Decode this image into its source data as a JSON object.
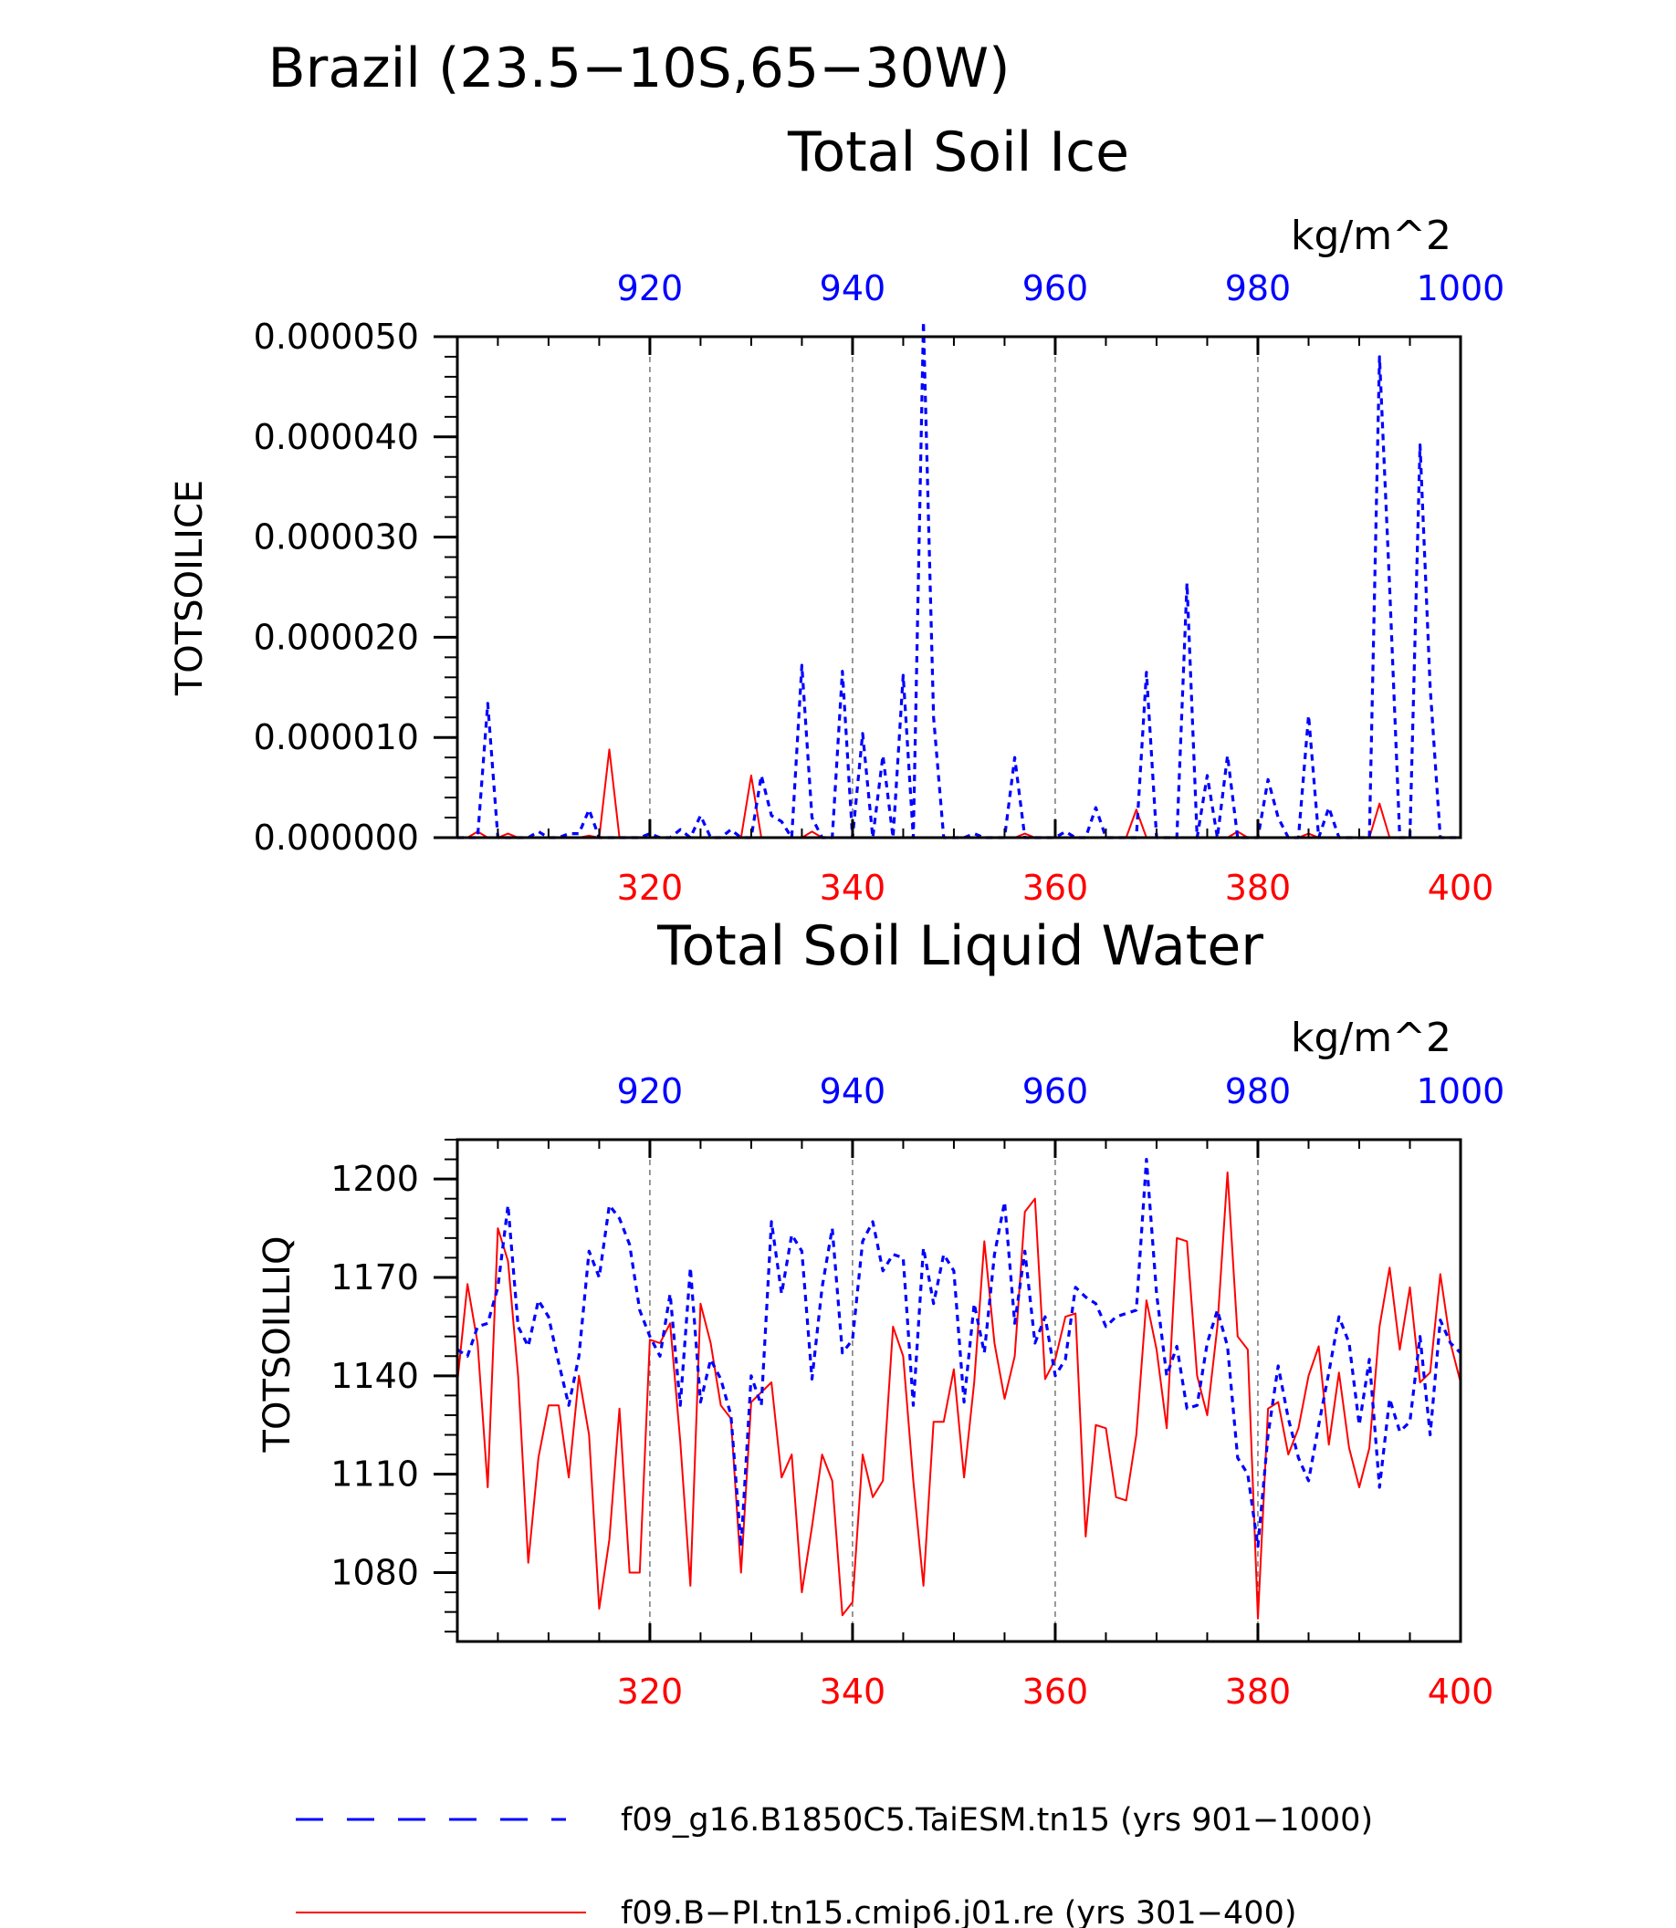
{
  "page": {
    "title_line1": "Brazil (23.5−10S,65−30W)"
  },
  "colors": {
    "series_blue": "#0000ff",
    "series_red": "#ff0000",
    "axes": "#000000"
  },
  "legend": {
    "entries": [
      {
        "label": "f09_g16.B1850C5.TaiESM.tn15 (yrs 901−1000)",
        "color": "#0000ff",
        "style": "dashed"
      },
      {
        "label": "f09.B−PI.tn15.cmip6.j01.re (yrs 301−400)",
        "color": "#ff0000",
        "style": "solid"
      }
    ]
  },
  "chart_data": [
    {
      "type": "line",
      "title": "Total Soil Ice",
      "ylabel": "TOTSOILICE",
      "units": "kg/m^2",
      "ylim": [
        0,
        5e-05
      ],
      "yticks": [
        "0.000000",
        "0.000010",
        "0.000020",
        "0.000030",
        "0.000040",
        "0.000050"
      ],
      "xlim_bottom": [
        301,
        400
      ],
      "xticks_bottom": [
        "320",
        "340",
        "360",
        "380",
        "400"
      ],
      "xlim_top": [
        901,
        1000
      ],
      "xticks_top": [
        "920",
        "940",
        "960",
        "980",
        "1000"
      ],
      "grid": "vertical dashed at major x ticks",
      "series": [
        {
          "color": "#ff0000",
          "style": "solid",
          "x_axis": "bottom",
          "x": [
            301,
            302,
            303,
            304,
            305,
            306,
            307,
            308,
            309,
            310,
            311,
            312,
            313,
            314,
            315,
            316,
            317,
            318,
            319,
            320,
            321,
            322,
            323,
            324,
            325,
            326,
            327,
            328,
            329,
            330,
            331,
            332,
            333,
            334,
            335,
            336,
            337,
            338,
            339,
            340,
            341,
            342,
            343,
            344,
            345,
            346,
            347,
            348,
            349,
            350,
            351,
            352,
            353,
            354,
            355,
            356,
            357,
            358,
            359,
            360,
            361,
            362,
            363,
            364,
            365,
            366,
            367,
            368,
            369,
            370,
            371,
            372,
            373,
            374,
            375,
            376,
            377,
            378,
            379,
            380,
            381,
            382,
            383,
            384,
            385,
            386,
            387,
            388,
            389,
            390,
            391,
            392,
            393,
            394,
            395,
            396,
            397,
            398,
            399,
            400
          ],
          "values": [
            0,
            0,
            6e-07,
            0,
            0,
            4e-07,
            0,
            0,
            0,
            0,
            0,
            0,
            0,
            2e-07,
            0,
            8.8e-06,
            0,
            0,
            0,
            0,
            0,
            0,
            0,
            0,
            0,
            0,
            0,
            0,
            0,
            6.2e-06,
            0,
            0,
            0,
            0,
            0,
            6e-07,
            0,
            0,
            0,
            0,
            0,
            0,
            0,
            0,
            0,
            0,
            0,
            0,
            0,
            0,
            0,
            0,
            0,
            0,
            0,
            0,
            4e-07,
            0,
            0,
            0,
            0,
            0,
            0,
            0,
            0,
            0,
            0,
            2.8e-06,
            0,
            0,
            0,
            0,
            0,
            0,
            0,
            0,
            0,
            6e-07,
            0,
            0,
            0,
            0,
            0,
            0,
            4e-07,
            0,
            0,
            0,
            0,
            0,
            0,
            3.4e-06,
            0,
            0,
            0,
            0,
            0,
            0,
            0,
            0
          ]
        },
        {
          "color": "#0000ff",
          "style": "dashed",
          "x_axis": "top",
          "x": [
            901,
            902,
            903,
            904,
            905,
            906,
            907,
            908,
            909,
            910,
            911,
            912,
            913,
            914,
            915,
            916,
            917,
            918,
            919,
            920,
            921,
            922,
            923,
            924,
            925,
            926,
            927,
            928,
            929,
            930,
            931,
            932,
            933,
            934,
            935,
            936,
            937,
            938,
            939,
            940,
            941,
            942,
            943,
            944,
            945,
            946,
            947,
            948,
            949,
            950,
            951,
            952,
            953,
            954,
            955,
            956,
            957,
            958,
            959,
            960,
            961,
            962,
            963,
            964,
            965,
            966,
            967,
            968,
            969,
            970,
            971,
            972,
            973,
            974,
            975,
            976,
            977,
            978,
            979,
            980,
            981,
            982,
            983,
            984,
            985,
            986,
            987,
            988,
            989,
            990,
            991,
            992,
            993,
            994,
            995,
            996,
            997,
            998,
            999,
            1000
          ],
          "values": [
            0,
            0,
            0,
            1.34e-05,
            0,
            0,
            0,
            0,
            6e-07,
            0,
            0,
            4e-07,
            4e-07,
            2.8e-06,
            0,
            0,
            0,
            0,
            0,
            4e-07,
            0,
            0,
            8e-07,
            0,
            2.2e-06,
            0,
            0,
            8e-07,
            0,
            0,
            6.2e-06,
            2.2e-06,
            1.6e-06,
            0,
            1.72e-05,
            2e-06,
            0,
            0,
            1.66e-05,
            0,
            1.04e-05,
            0,
            8.2e-06,
            0,
            1.62e-05,
            0,
            5.15e-05,
            1.2e-05,
            0,
            0,
            0,
            4e-07,
            0,
            0,
            0,
            8e-06,
            0,
            0,
            0,
            0,
            6e-07,
            0,
            0,
            3e-06,
            0,
            0,
            0,
            0,
            1.65e-05,
            0,
            0,
            0,
            2.54e-05,
            0,
            6.2e-06,
            0,
            8.2e-06,
            0,
            0,
            0,
            5.8e-06,
            2e-06,
            0,
            0,
            1.22e-05,
            0,
            3e-06,
            0,
            0,
            0,
            0,
            4.8e-05,
            2.5e-05,
            0,
            0,
            3.92e-05,
            1.5e-05,
            0,
            0,
            0
          ]
        }
      ]
    },
    {
      "type": "line",
      "title": "Total Soil Liquid Water",
      "ylabel": "TOTSOILLIQ",
      "units": "kg/m^2",
      "ylim": [
        1059,
        1212
      ],
      "yticks": [
        "1080",
        "1110",
        "1140",
        "1170",
        "1200"
      ],
      "xlim_bottom": [
        301,
        400
      ],
      "xticks_bottom": [
        "320",
        "340",
        "360",
        "380",
        "400"
      ],
      "xlim_top": [
        901,
        1000
      ],
      "xticks_top": [
        "920",
        "940",
        "960",
        "980",
        "1000"
      ],
      "grid": "vertical dashed at major x ticks",
      "series": [
        {
          "color": "#ff0000",
          "style": "solid",
          "x_axis": "bottom",
          "x": [
            301,
            302,
            303,
            304,
            305,
            306,
            307,
            308,
            309,
            310,
            311,
            312,
            313,
            314,
            315,
            316,
            317,
            318,
            319,
            320,
            321,
            322,
            323,
            324,
            325,
            326,
            327,
            328,
            329,
            330,
            331,
            332,
            333,
            334,
            335,
            336,
            337,
            338,
            339,
            340,
            341,
            342,
            343,
            344,
            345,
            346,
            347,
            348,
            349,
            350,
            351,
            352,
            353,
            354,
            355,
            356,
            357,
            358,
            359,
            360,
            361,
            362,
            363,
            364,
            365,
            366,
            367,
            368,
            369,
            370,
            371,
            372,
            373,
            374,
            375,
            376,
            377,
            378,
            379,
            380,
            381,
            382,
            383,
            384,
            385,
            386,
            387,
            388,
            389,
            390,
            391,
            392,
            393,
            394,
            395,
            396,
            397,
            398,
            399,
            400
          ],
          "values": [
            1138,
            1168,
            1150,
            1106,
            1185,
            1175,
            1140,
            1083,
            1115,
            1131,
            1131,
            1109,
            1140,
            1122,
            1069,
            1090,
            1130,
            1080,
            1080,
            1151,
            1150,
            1156,
            1120,
            1076,
            1162,
            1150,
            1131,
            1127,
            1080,
            1132,
            1135,
            1138,
            1109,
            1116,
            1074,
            1094,
            1116,
            1108,
            1067,
            1071,
            1116,
            1103,
            1108,
            1155,
            1146,
            1108,
            1076,
            1126,
            1126,
            1142,
            1109,
            1138,
            1181,
            1150,
            1133,
            1146,
            1190,
            1194,
            1139,
            1145,
            1158,
            1159,
            1091,
            1125,
            1124,
            1103,
            1102,
            1122,
            1163,
            1148,
            1124,
            1182,
            1181,
            1140,
            1128,
            1155,
            1202,
            1152,
            1148,
            1066,
            1130,
            1132,
            1116,
            1124,
            1140,
            1149,
            1119,
            1141,
            1118,
            1106,
            1118,
            1155,
            1173,
            1148,
            1167,
            1138,
            1141,
            1171,
            1150,
            1138
          ]
        },
        {
          "color": "#0000ff",
          "style": "dashed",
          "x_axis": "top",
          "x": [
            901,
            902,
            903,
            904,
            905,
            906,
            907,
            908,
            909,
            910,
            911,
            912,
            913,
            914,
            915,
            916,
            917,
            918,
            919,
            920,
            921,
            922,
            923,
            924,
            925,
            926,
            927,
            928,
            929,
            930,
            931,
            932,
            933,
            934,
            935,
            936,
            937,
            938,
            939,
            940,
            941,
            942,
            943,
            944,
            945,
            946,
            947,
            948,
            949,
            950,
            951,
            952,
            953,
            954,
            955,
            956,
            957,
            958,
            959,
            960,
            961,
            962,
            963,
            964,
            965,
            966,
            967,
            968,
            969,
            970,
            971,
            972,
            973,
            974,
            975,
            976,
            977,
            978,
            979,
            980,
            981,
            982,
            983,
            984,
            985,
            986,
            987,
            988,
            989,
            990,
            991,
            992,
            993,
            994,
            995,
            996,
            997,
            998,
            999,
            1000
          ],
          "values": [
            1148,
            1146,
            1155,
            1156,
            1167,
            1192,
            1155,
            1149,
            1163,
            1158,
            1144,
            1131,
            1146,
            1178,
            1170,
            1192,
            1188,
            1180,
            1160,
            1152,
            1146,
            1165,
            1131,
            1173,
            1132,
            1145,
            1139,
            1128,
            1088,
            1140,
            1131,
            1187,
            1165,
            1183,
            1178,
            1139,
            1167,
            1185,
            1147,
            1151,
            1181,
            1187,
            1172,
            1177,
            1176,
            1131,
            1179,
            1162,
            1177,
            1172,
            1132,
            1162,
            1147,
            1177,
            1193,
            1156,
            1178,
            1150,
            1158,
            1140,
            1145,
            1167,
            1164,
            1162,
            1155,
            1158,
            1159,
            1160,
            1206,
            1165,
            1140,
            1149,
            1130,
            1131,
            1150,
            1160,
            1149,
            1115,
            1110,
            1088,
            1122,
            1143,
            1127,
            1115,
            1108,
            1125,
            1141,
            1158,
            1150,
            1125,
            1145,
            1106,
            1133,
            1123,
            1126,
            1152,
            1122,
            1157,
            1150,
            1147
          ]
        }
      ]
    }
  ]
}
